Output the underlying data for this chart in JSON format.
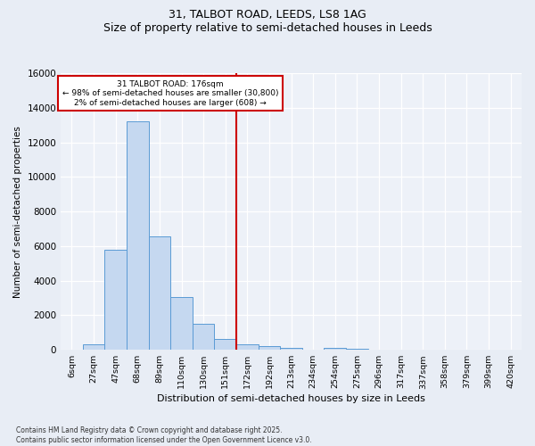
{
  "title1": "31, TALBOT ROAD, LEEDS, LS8 1AG",
  "title2": "Size of property relative to semi-detached houses in Leeds",
  "xlabel": "Distribution of semi-detached houses by size in Leeds",
  "ylabel": "Number of semi-detached properties",
  "categories": [
    "6sqm",
    "27sqm",
    "47sqm",
    "68sqm",
    "89sqm",
    "110sqm",
    "130sqm",
    "151sqm",
    "172sqm",
    "192sqm",
    "213sqm",
    "234sqm",
    "254sqm",
    "275sqm",
    "296sqm",
    "317sqm",
    "337sqm",
    "358sqm",
    "379sqm",
    "399sqm",
    "420sqm"
  ],
  "values": [
    0,
    300,
    5800,
    13200,
    6550,
    3050,
    1500,
    620,
    300,
    230,
    130,
    0,
    100,
    50,
    0,
    0,
    0,
    0,
    0,
    0,
    0
  ],
  "bar_color": "#c5d8f0",
  "bar_edge_color": "#5b9bd5",
  "vline_color": "#cc0000",
  "annotation_title": "31 TALBOT ROAD: 176sqm",
  "annotation_line1": "← 98% of semi-detached houses are smaller (30,800)",
  "annotation_line2": "2% of semi-detached houses are larger (608) →",
  "annotation_box_color": "#cc0000",
  "ylim": [
    0,
    16000
  ],
  "yticks": [
    0,
    2000,
    4000,
    6000,
    8000,
    10000,
    12000,
    14000,
    16000
  ],
  "footer1": "Contains HM Land Registry data © Crown copyright and database right 2025.",
  "footer2": "Contains public sector information licensed under the Open Government Licence v3.0.",
  "bg_color": "#e8edf5",
  "plot_bg_color": "#edf1f8"
}
